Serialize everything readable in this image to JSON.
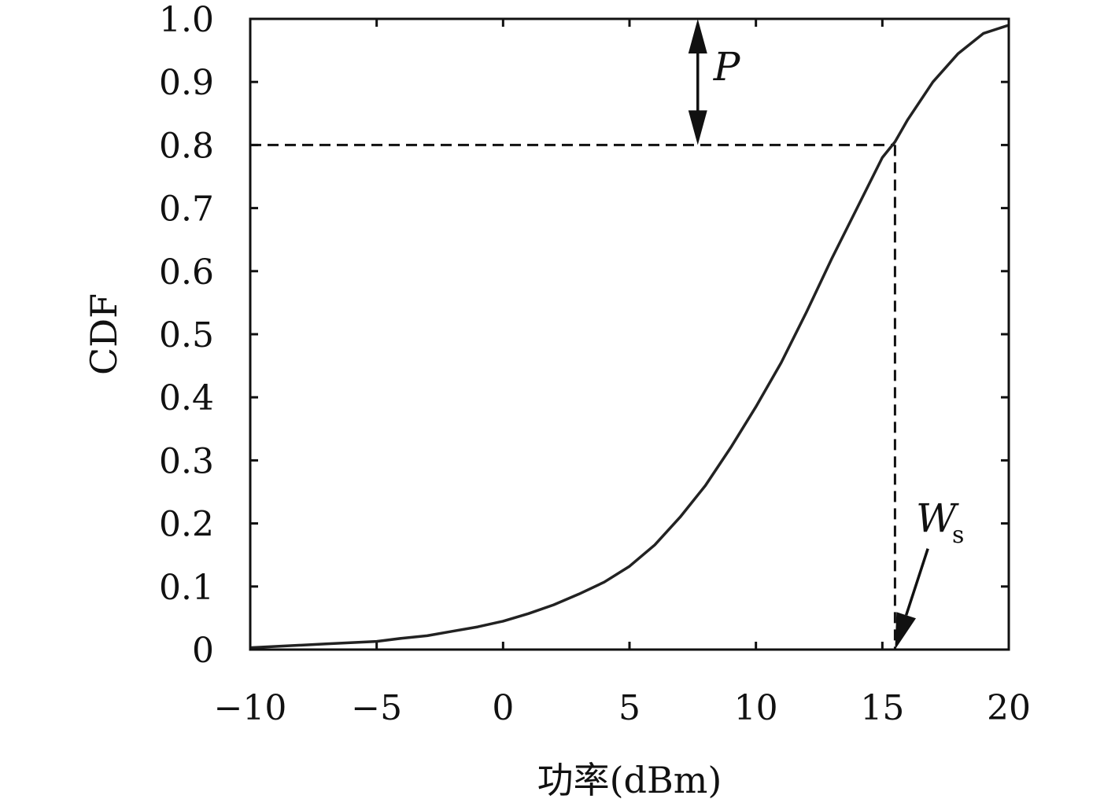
{
  "chart_data": {
    "type": "line",
    "xlabel": "功率(dBm)",
    "ylabel": "CDF",
    "xlim": [
      -10,
      20
    ],
    "ylim": [
      0,
      1.0
    ],
    "x_ticks": [
      -10,
      -5,
      0,
      5,
      10,
      15,
      20
    ],
    "x_tick_labels": [
      "−10",
      "−5",
      "0",
      "5",
      "10",
      "15",
      "20"
    ],
    "y_ticks": [
      0,
      0.1,
      0.2,
      0.3,
      0.4,
      0.5,
      0.6,
      0.7,
      0.8,
      0.9,
      1.0
    ],
    "y_tick_labels": [
      "0",
      "0.1",
      "0.2",
      "0.3",
      "0.4",
      "0.5",
      "0.6",
      "0.7",
      "0.8",
      "0.9",
      "1.0"
    ],
    "grid": false,
    "series": [
      {
        "x": [
          -10,
          -7,
          -5,
          -4,
          -3,
          -2,
          -1,
          0,
          1,
          2,
          3,
          4,
          5,
          6,
          7,
          8,
          9,
          10,
          11,
          12,
          13,
          14,
          15,
          15.5,
          16,
          17,
          18,
          19,
          20
        ],
        "y": [
          0.003,
          0.009,
          0.013,
          0.018,
          0.022,
          0.029,
          0.036,
          0.045,
          0.057,
          0.071,
          0.088,
          0.107,
          0.132,
          0.166,
          0.21,
          0.26,
          0.32,
          0.385,
          0.455,
          0.535,
          0.62,
          0.7,
          0.78,
          0.805,
          0.84,
          0.9,
          0.945,
          0.977,
          0.99
        ],
        "color": "#222222"
      }
    ],
    "annotations": [
      {
        "label": "P",
        "kind": "double-arrow",
        "x": 7.7,
        "y_from": 0.8,
        "y_to": 1.0
      },
      {
        "label": "W",
        "subscript": "s",
        "kind": "arrow",
        "x_from": 16.8,
        "y_from": 0.16,
        "x_to": 15.5,
        "y_to": 0.0
      }
    ],
    "reference_lines": [
      {
        "kind": "dashed",
        "x_from": -10,
        "y_from": 0.8,
        "x_to": 15.5,
        "y_to": 0.8
      },
      {
        "kind": "dashed",
        "x_from": 15.5,
        "y_from": 0.8,
        "x_to": 15.5,
        "y_to": 0.0
      }
    ]
  }
}
